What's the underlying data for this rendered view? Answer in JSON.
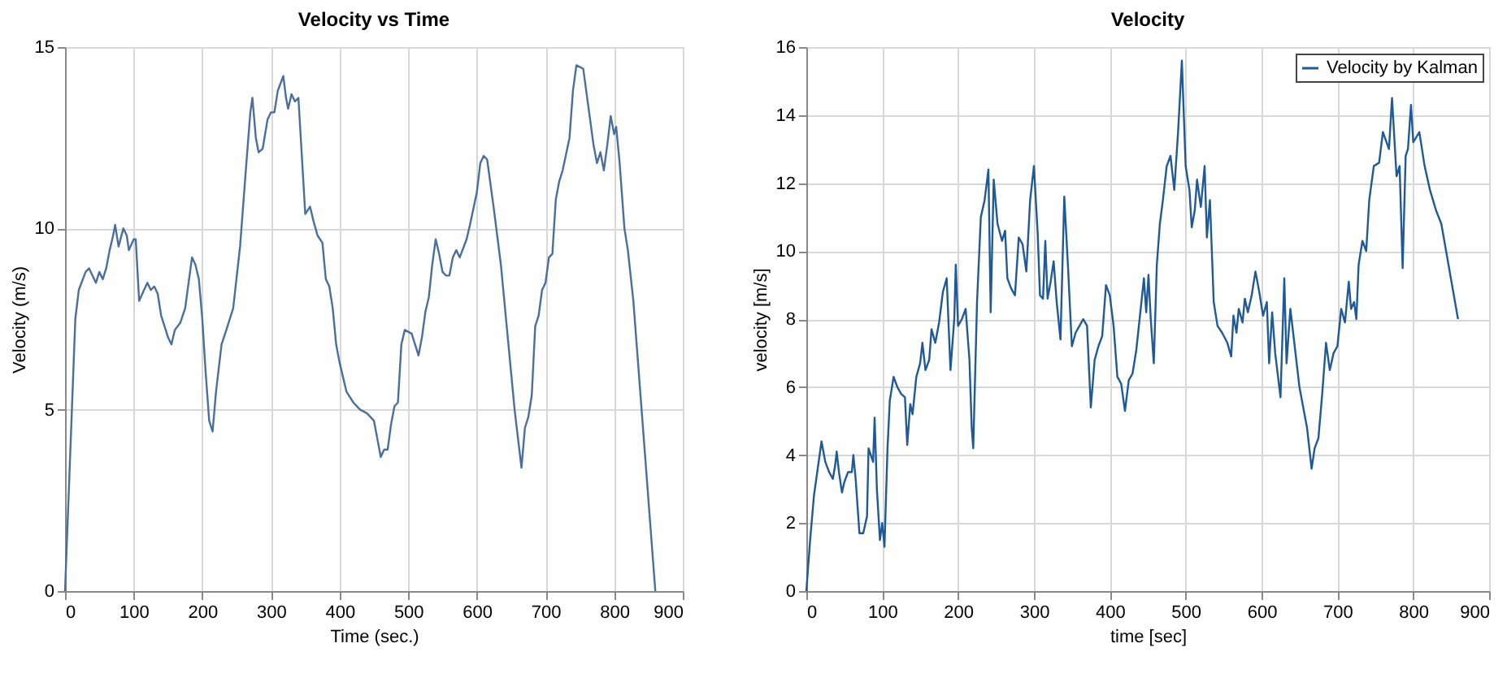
{
  "chart_data": [
    {
      "type": "line",
      "title": "Velocity vs Time",
      "xlabel": "Time (sec.)",
      "ylabel": "Velocity (m/s)",
      "xlim": [
        0,
        900
      ],
      "ylim": [
        0,
        15
      ],
      "xticks": [
        0,
        100,
        200,
        300,
        400,
        500,
        600,
        700,
        800,
        900
      ],
      "yticks": [
        0,
        5,
        10,
        15
      ],
      "grid": true,
      "legend": false,
      "series": [
        {
          "color": "#4a6f9c",
          "x": [
            0,
            10,
            15,
            20,
            30,
            35,
            40,
            45,
            50,
            55,
            60,
            65,
            70,
            73,
            78,
            85,
            90,
            93,
            100,
            103,
            108,
            115,
            120,
            125,
            130,
            135,
            140,
            145,
            150,
            155,
            160,
            168,
            175,
            185,
            190,
            195,
            200,
            205,
            210,
            215,
            220,
            228,
            235,
            245,
            255,
            265,
            270,
            273,
            278,
            282,
            288,
            295,
            300,
            305,
            310,
            318,
            322,
            325,
            330,
            335,
            340,
            345,
            350,
            357,
            362,
            368,
            375,
            380,
            385,
            390,
            395,
            400,
            410,
            420,
            430,
            440,
            450,
            455,
            460,
            465,
            470,
            475,
            480,
            485,
            490,
            495,
            505,
            510,
            515,
            520,
            525,
            530,
            535,
            540,
            545,
            550,
            555,
            560,
            565,
            570,
            575,
            585,
            590,
            600,
            605,
            610,
            615,
            625,
            635,
            645,
            655,
            665,
            670,
            675,
            680,
            685,
            690,
            695,
            700,
            705,
            710,
            715,
            720,
            725,
            735,
            740,
            745,
            755,
            765,
            770,
            775,
            780,
            785,
            790,
            795,
            800,
            803,
            808,
            815,
            820,
            828,
            840,
            860
          ],
          "values": [
            0,
            5,
            7.5,
            8.3,
            8.8,
            8.9,
            8.7,
            8.5,
            8.8,
            8.6,
            8.9,
            9.4,
            9.8,
            10.1,
            9.5,
            10,
            9.8,
            9.4,
            9.7,
            9.7,
            8,
            8.3,
            8.5,
            8.3,
            8.4,
            8.2,
            7.6,
            7.3,
            7,
            6.8,
            7.2,
            7.4,
            7.8,
            9.2,
            9,
            8.6,
            7.5,
            6,
            4.7,
            4.4,
            5.5,
            6.8,
            7.2,
            7.8,
            9.5,
            12,
            13.2,
            13.6,
            12.5,
            12.1,
            12.2,
            13,
            13.2,
            13.2,
            13.8,
            14.2,
            13.6,
            13.3,
            13.7,
            13.5,
            13.6,
            12,
            10.4,
            10.6,
            10.2,
            9.8,
            9.6,
            8.6,
            8.4,
            7.8,
            6.8,
            6.3,
            5.5,
            5.2,
            5,
            4.9,
            4.7,
            4.2,
            3.7,
            3.9,
            3.9,
            4.6,
            5.1,
            5.2,
            6.8,
            7.2,
            7.1,
            6.8,
            6.5,
            7,
            7.7,
            8.1,
            9,
            9.7,
            9.3,
            8.8,
            8.7,
            8.7,
            9.2,
            9.4,
            9.2,
            9.7,
            10.1,
            11,
            11.8,
            12,
            11.9,
            10.5,
            9,
            7,
            5,
            3.4,
            4.5,
            4.8,
            5.4,
            7.3,
            7.6,
            8.3,
            8.5,
            9.2,
            9.3,
            10.8,
            11.3,
            11.6,
            12.5,
            13.8,
            14.5,
            14.4,
            13,
            12.3,
            11.8,
            12.1,
            11.6,
            12.3,
            13.1,
            12.6,
            12.8,
            11.8,
            10,
            9.4,
            8,
            5,
            0
          ]
        }
      ]
    },
    {
      "type": "line",
      "title": "Velocity",
      "xlabel": "time [sec]",
      "ylabel": "velocity [m/s]",
      "xlim": [
        0,
        900
      ],
      "ylim": [
        0,
        16
      ],
      "xticks": [
        0,
        100,
        200,
        300,
        400,
        500,
        600,
        700,
        800,
        900
      ],
      "yticks": [
        0,
        2,
        4,
        6,
        8,
        10,
        12,
        14,
        16
      ],
      "grid": true,
      "legend": "top right",
      "series": [
        {
          "name": "Velocity by Kalman",
          "color": "#1f5a96",
          "x": [
            0,
            5,
            10,
            20,
            25,
            30,
            35,
            38,
            40,
            43,
            47,
            50,
            55,
            60,
            62,
            65,
            70,
            75,
            80,
            82,
            85,
            88,
            90,
            93,
            97,
            100,
            103,
            107,
            110,
            115,
            120,
            125,
            130,
            133,
            137,
            140,
            145,
            150,
            153,
            157,
            162,
            165,
            170,
            175,
            180,
            185,
            190,
            195,
            197,
            200,
            205,
            210,
            215,
            218,
            220,
            225,
            230,
            235,
            240,
            243,
            247,
            252,
            258,
            262,
            265,
            270,
            275,
            280,
            285,
            290,
            295,
            300,
            305,
            308,
            312,
            315,
            318,
            322,
            326,
            330,
            335,
            340,
            345,
            350,
            355,
            360,
            365,
            370,
            375,
            380,
            385,
            390,
            395,
            400,
            405,
            410,
            415,
            420,
            425,
            430,
            435,
            445,
            448,
            451,
            454,
            458,
            462,
            466,
            470,
            475,
            480,
            485,
            490,
            495,
            500,
            505,
            508,
            512,
            515,
            520,
            525,
            528,
            532,
            537,
            542,
            548,
            555,
            560,
            563,
            567,
            570,
            575,
            578,
            582,
            587,
            592,
            597,
            602,
            607,
            610,
            614,
            618,
            625,
            630,
            633,
            638,
            650,
            660,
            666,
            670,
            675,
            680,
            685,
            690,
            695,
            700,
            705,
            710,
            715,
            718,
            722,
            725,
            728,
            733,
            738,
            742,
            748,
            755,
            760,
            768,
            772,
            778,
            782,
            786,
            790,
            793,
            797,
            800,
            808,
            815,
            822,
            830,
            837,
            859
          ],
          "values": [
            0,
            1.5,
            2.8,
            4.4,
            3.8,
            3.5,
            3.3,
            3.7,
            4.1,
            3.5,
            2.9,
            3.2,
            3.5,
            3.5,
            4,
            3.3,
            1.7,
            1.7,
            2.2,
            4.2,
            4,
            3.8,
            5.1,
            3,
            1.5,
            2,
            1.3,
            4.2,
            5.6,
            6.3,
            6,
            5.8,
            5.7,
            4.3,
            5.5,
            5.2,
            6.3,
            6.7,
            7.3,
            6.5,
            6.8,
            7.7,
            7.3,
            7.9,
            8.8,
            9.2,
            6.5,
            8,
            9.6,
            7.8,
            8,
            8.3,
            6.8,
            4.8,
            4.2,
            8.5,
            11,
            11.5,
            12.4,
            8.2,
            12.1,
            10.8,
            10.3,
            10.6,
            9.2,
            8.9,
            8.7,
            10.4,
            10.2,
            9.4,
            11.5,
            12.5,
            10.5,
            8.7,
            8.6,
            10.3,
            8.6,
            9.1,
            9.7,
            8.5,
            7.4,
            11.6,
            9.5,
            7.2,
            7.6,
            7.8,
            8,
            7.8,
            5.4,
            6.8,
            7.2,
            7.5,
            9,
            8.7,
            7.8,
            6.3,
            6.1,
            5.3,
            6.2,
            6.4,
            7.1,
            9.2,
            8.2,
            9.3,
            8,
            6.7,
            9.6,
            10.8,
            11.5,
            12.5,
            12.8,
            11.8,
            13.5,
            15.6,
            12.5,
            11.8,
            10.7,
            11.2,
            12.1,
            11.3,
            12.5,
            10.4,
            11.5,
            8.5,
            7.8,
            7.6,
            7.3,
            6.9,
            8.1,
            7.6,
            8.3,
            7.9,
            8.6,
            8.2,
            8.7,
            9.4,
            8.8,
            8.1,
            8.5,
            6.7,
            8.2,
            7,
            5.7,
            9.2,
            6.7,
            8.3,
            6,
            4.8,
            3.6,
            4.2,
            4.5,
            5.8,
            7.3,
            6.5,
            7,
            7.2,
            8.3,
            7.9,
            9.1,
            8.3,
            8.5,
            8,
            9.6,
            10.3,
            10,
            11.5,
            12.5,
            12.6,
            13.5,
            13,
            14.5,
            12.2,
            12.5,
            9.5,
            12.8,
            13,
            14.3,
            13.2,
            13.5,
            12.5,
            11.8,
            11.2,
            10.8,
            8
          ]
        }
      ]
    }
  ]
}
